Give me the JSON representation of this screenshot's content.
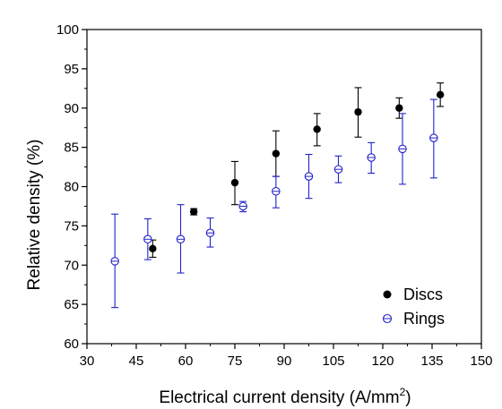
{
  "chart_data": {
    "type": "scatter",
    "title": "",
    "xlabel": "Electrical current density (A/mm",
    "xlabel_sup": "2",
    "xlabel_suffix": ")",
    "ylabel": "Relative density (%)",
    "xlim": [
      30,
      150
    ],
    "ylim": [
      60,
      100
    ],
    "xticks": [
      30,
      45,
      60,
      75,
      90,
      105,
      120,
      135,
      150
    ],
    "yticks": [
      60,
      65,
      70,
      75,
      80,
      85,
      90,
      95,
      100
    ],
    "grid": false,
    "legend_position": "bottom-right",
    "series": [
      {
        "name": "Discs",
        "color": "#000000",
        "marker": "filled-circle",
        "points": [
          {
            "x": 50,
            "y": 72.1,
            "lo": 71.0,
            "hi": 73.2
          },
          {
            "x": 62.5,
            "y": 76.8,
            "lo": 76.4,
            "hi": 77.2
          },
          {
            "x": 75,
            "y": 80.5,
            "lo": 77.7,
            "hi": 83.2
          },
          {
            "x": 87.5,
            "y": 84.2,
            "lo": 81.3,
            "hi": 87.1
          },
          {
            "x": 100,
            "y": 87.3,
            "lo": 85.2,
            "hi": 89.3
          },
          {
            "x": 112.5,
            "y": 89.5,
            "lo": 86.3,
            "hi": 92.6
          },
          {
            "x": 125,
            "y": 90.0,
            "lo": 88.7,
            "hi": 91.3
          },
          {
            "x": 137.5,
            "y": 91.7,
            "lo": 90.2,
            "hi": 93.2
          }
        ]
      },
      {
        "name": "Rings",
        "color": "#2222cc",
        "marker": "hollow-circle",
        "points": [
          {
            "x": 38.5,
            "y": 70.5,
            "lo": 64.6,
            "hi": 76.5
          },
          {
            "x": 48.5,
            "y": 73.3,
            "lo": 70.7,
            "hi": 75.9
          },
          {
            "x": 58.5,
            "y": 73.3,
            "lo": 69.0,
            "hi": 77.7
          },
          {
            "x": 67.5,
            "y": 74.1,
            "lo": 72.3,
            "hi": 76.0
          },
          {
            "x": 77.5,
            "y": 77.5,
            "lo": 76.8,
            "hi": 78.1
          },
          {
            "x": 87.5,
            "y": 79.4,
            "lo": 77.3,
            "hi": 81.3
          },
          {
            "x": 97.5,
            "y": 81.3,
            "lo": 78.5,
            "hi": 84.1
          },
          {
            "x": 106.5,
            "y": 82.2,
            "lo": 80.5,
            "hi": 83.9
          },
          {
            "x": 116.5,
            "y": 83.7,
            "lo": 81.7,
            "hi": 85.6
          },
          {
            "x": 126,
            "y": 84.8,
            "lo": 80.3,
            "hi": 89.3
          },
          {
            "x": 135.5,
            "y": 86.2,
            "lo": 81.1,
            "hi": 91.1
          }
        ]
      }
    ]
  }
}
